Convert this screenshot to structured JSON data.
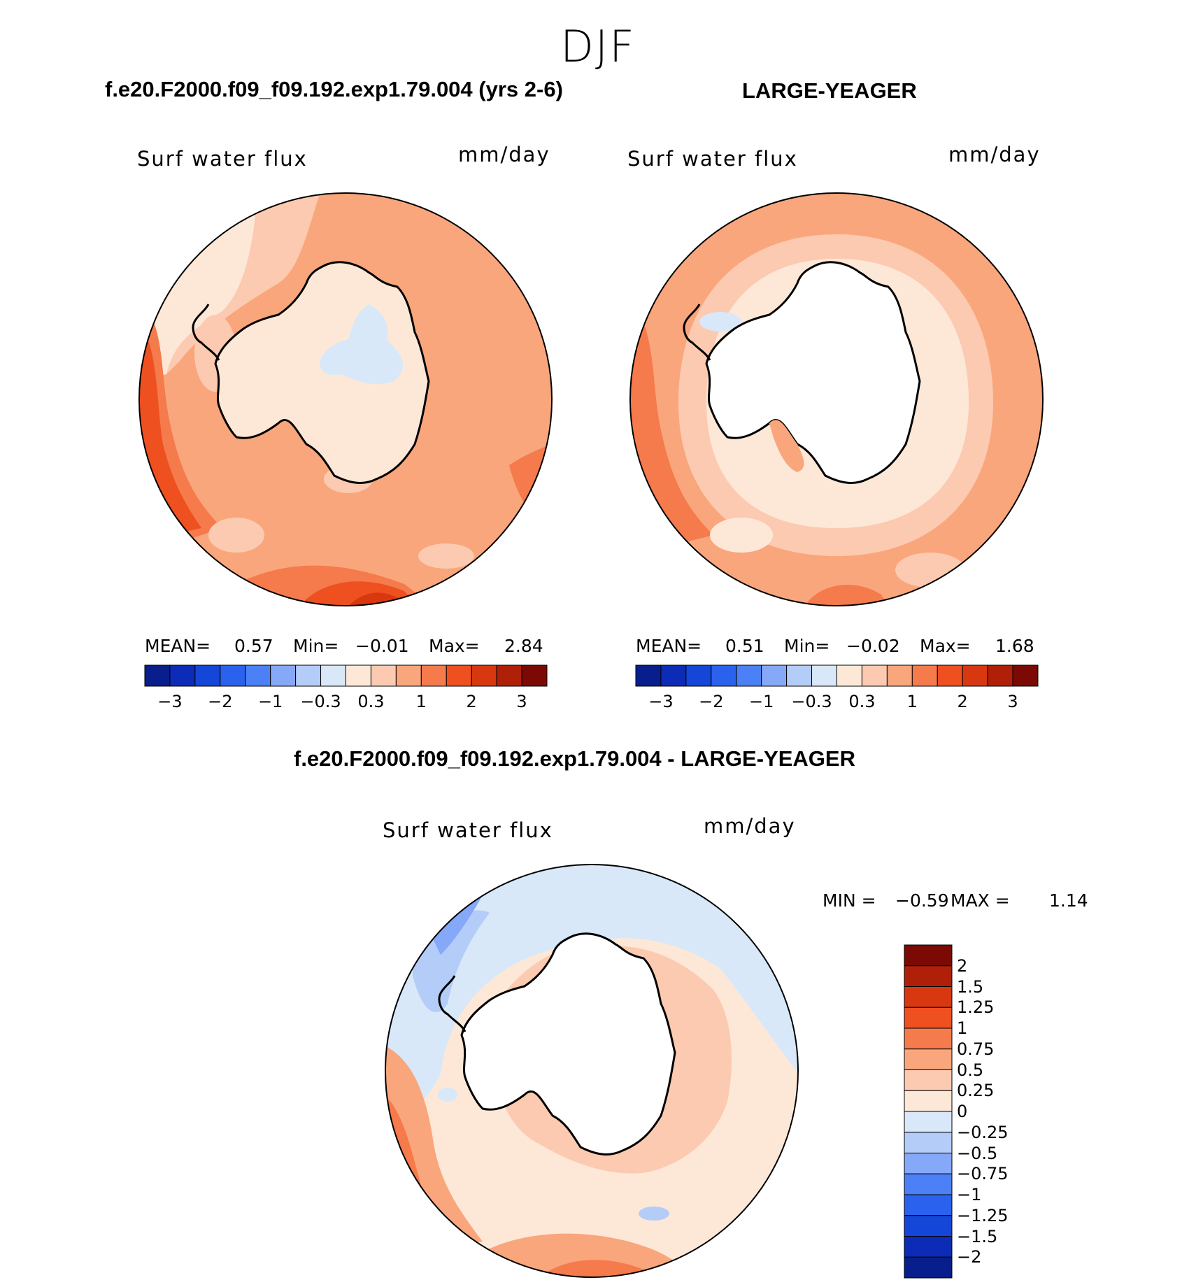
{
  "season": "DJF",
  "panels": {
    "left": {
      "case": "f.e20.F2000.f09_f09.192.exp1.79.004 (yrs 2-6)",
      "variable": "Surf water flux",
      "units": "mm/day",
      "stats": {
        "mean_label": "MEAN=",
        "mean": "0.57",
        "min_label": "Min=",
        "min": "−0.01",
        "max_label": "Max=",
        "max": "2.84"
      }
    },
    "right": {
      "case": "LARGE-YEAGER",
      "variable": "Surf water flux",
      "units": "mm/day",
      "stats": {
        "mean_label": "MEAN=",
        "mean": "0.51",
        "min_label": "Min=",
        "min": "−0.02",
        "max_label": "Max=",
        "max": "1.68"
      }
    },
    "diff": {
      "case": "f.e20.F2000.f09_f09.192.exp1.79.004 - LARGE-YEAGER",
      "variable": "Surf water flux",
      "units": "mm/day",
      "stats": {
        "min_label": "MIN =",
        "min": "−0.59",
        "max_label": "MAX =",
        "max": "1.14"
      }
    }
  },
  "colorbar_main": {
    "colors": [
      "#081e8c",
      "#0c2cb8",
      "#1446d8",
      "#2a62ee",
      "#4c80f6",
      "#86a8f8",
      "#b4ccf8",
      "#d8e8f8",
      "#fde8d8",
      "#fccab0",
      "#f9a67c",
      "#f57a4c",
      "#ee5020",
      "#d83810",
      "#b02008",
      "#7c0a04"
    ],
    "tick_labels": [
      "−3",
      "−2",
      "−1",
      "−0.3",
      "0.3",
      "1",
      "2",
      "3"
    ]
  },
  "colorbar_diff": {
    "colors": [
      "#7c0a04",
      "#b02008",
      "#d83810",
      "#ee5020",
      "#f57a4c",
      "#f9a67c",
      "#fccab0",
      "#fde8d8",
      "#d8e8f8",
      "#b4ccf8",
      "#86a8f8",
      "#4c80f6",
      "#2a62ee",
      "#1446d8",
      "#0c2cb8",
      "#081e8c"
    ],
    "tick_labels": [
      "2",
      "1.5",
      "1.25",
      "1",
      "0.75",
      "0.5",
      "0.25",
      "0",
      "−0.25",
      "−0.5",
      "−0.75",
      "−1",
      "−1.25",
      "−1.5",
      "−2"
    ]
  }
}
